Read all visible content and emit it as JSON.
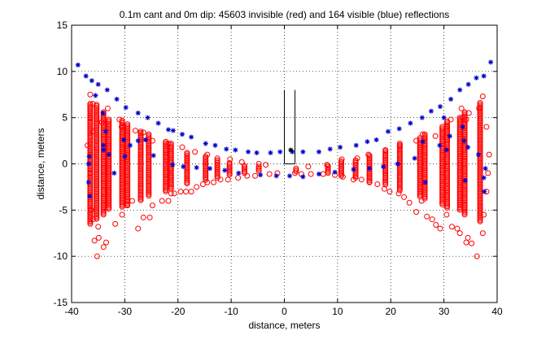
{
  "chart_data": {
    "type": "scatter",
    "title": "0.1m cant and 0m dip: 45603 invisible (red) and 164 visible (blue) reflections",
    "xlabel": "distance, meters",
    "ylabel": "distance, meters",
    "xlim": [
      -40,
      40
    ],
    "ylim": [
      -15,
      15
    ],
    "x_ticks": [
      -40,
      -30,
      -20,
      -10,
      0,
      10,
      20,
      30,
      40
    ],
    "y_ticks": [
      -15,
      -10,
      -5,
      0,
      5,
      10,
      15
    ],
    "x_tick_labels": [
      "-40",
      "-30",
      "-20",
      "-10",
      "0",
      "10",
      "20",
      "30",
      "40"
    ],
    "y_tick_labels": [
      "-15",
      "-10",
      "-5",
      "0",
      "5",
      "10",
      "15"
    ],
    "grid": true,
    "grid_style": "dotted",
    "series": [
      {
        "color": "#ff0000",
        "marker": "circle-open",
        "points": [
          [
            -36.5,
            1
          ],
          [
            -36.5,
            -1
          ],
          [
            -36.3,
            -5
          ],
          [
            -36,
            -6
          ],
          [
            -35.7,
            -8.3
          ],
          [
            -35.2,
            -10
          ],
          [
            -35,
            -6.8
          ],
          [
            -34.9,
            -8
          ],
          [
            -34,
            -9
          ],
          [
            -33.5,
            -8.5
          ],
          [
            -31.8,
            -6.5
          ],
          [
            -30.5,
            -5.5
          ],
          [
            -29.5,
            -4.5
          ],
          [
            -28.6,
            -4
          ],
          [
            -27.5,
            -7
          ],
          [
            -26.5,
            -5.8
          ],
          [
            -25.3,
            -5.8
          ],
          [
            -24.8,
            -4.5
          ],
          [
            -23,
            -4
          ],
          [
            -21.8,
            -4
          ],
          [
            -21.3,
            -3.2
          ],
          [
            -20.7,
            -3.2
          ],
          [
            -19.5,
            -3
          ],
          [
            -18.5,
            -3
          ],
          [
            -17.5,
            -3
          ],
          [
            -16.5,
            -2.5
          ],
          [
            -15.3,
            -2.2
          ],
          [
            -14.5,
            -2
          ],
          [
            -13.3,
            -2
          ],
          [
            -12,
            -1.7
          ],
          [
            -10.6,
            -1.7
          ],
          [
            -8.7,
            -1.5
          ],
          [
            -7,
            -1.3
          ],
          [
            -5.5,
            -1.3
          ],
          [
            -2.8,
            -1.1
          ],
          [
            -1.3,
            -1
          ],
          [
            2,
            -1
          ],
          [
            3.2,
            -1.1
          ],
          [
            5,
            -1.1
          ],
          [
            7.3,
            -1.1
          ],
          [
            9.5,
            -1.2
          ],
          [
            11,
            -1.4
          ],
          [
            13,
            -1.7
          ],
          [
            14.5,
            -1.7
          ],
          [
            16,
            -2
          ],
          [
            17.5,
            -2.2
          ],
          [
            18.8,
            -2.7
          ],
          [
            19.8,
            -3
          ],
          [
            21.5,
            -3.2
          ],
          [
            22.5,
            -3.6
          ],
          [
            23.5,
            -4.2
          ],
          [
            24.8,
            -5.2
          ],
          [
            25.8,
            -4
          ],
          [
            26.8,
            -5.7
          ],
          [
            27.8,
            -6
          ],
          [
            28.5,
            -6.6
          ],
          [
            29.3,
            -7
          ],
          [
            30.5,
            -5.5
          ],
          [
            31.5,
            -6.8
          ],
          [
            32.5,
            -7
          ],
          [
            33,
            -7.5
          ],
          [
            34.2,
            -8.5
          ],
          [
            34.5,
            -8
          ],
          [
            35.2,
            -8.6
          ],
          [
            36.2,
            -10
          ],
          [
            37.3,
            -7.5
          ],
          [
            37.5,
            -5.5
          ],
          [
            38,
            -3
          ],
          [
            38.3,
            -1
          ],
          [
            38.5,
            1
          ],
          [
            -36.5,
            5
          ],
          [
            -36,
            3.5
          ],
          [
            -36,
            6.5
          ],
          [
            -36.5,
            7.5
          ],
          [
            -31,
            4.8
          ],
          [
            -30.6,
            4
          ],
          [
            -28,
            3.6
          ],
          [
            -26.5,
            3.4
          ],
          [
            -24.8,
            2.5
          ],
          [
            -21.8,
            2.2
          ],
          [
            -19.2,
            1.8
          ],
          [
            -16.8,
            1.3
          ],
          [
            -14.5,
            1
          ],
          [
            -12.6,
            0.6
          ],
          [
            -10.2,
            0.5
          ],
          [
            -8,
            0.2
          ],
          [
            -4.8,
            0
          ],
          [
            -3.5,
            -0.1
          ],
          [
            4.5,
            -0.3
          ],
          [
            8,
            -0.1
          ],
          [
            10.8,
            0.5
          ],
          [
            13.7,
            0.6
          ],
          [
            15.8,
            1
          ],
          [
            19,
            1.5
          ],
          [
            21.7,
            2
          ],
          [
            24.8,
            2.5
          ],
          [
            26,
            3.2
          ],
          [
            28.4,
            3
          ],
          [
            30.5,
            4
          ],
          [
            31.3,
            4.8
          ],
          [
            33.5,
            5
          ],
          [
            34.7,
            5.5
          ],
          [
            36.6,
            6
          ],
          [
            37.3,
            7.3
          ],
          [
            38,
            4
          ],
          [
            -34.3,
            4.5
          ],
          [
            34.2,
            4.8
          ],
          [
            -33.2,
            6
          ],
          [
            33.3,
            6
          ],
          [
            -37,
            2
          ]
        ]
      },
      {
        "color": "#0000cc",
        "marker": "asterisk",
        "points": [
          [
            -38.8,
            10.7
          ],
          [
            -37.3,
            9.5
          ],
          [
            -36.2,
            9
          ],
          [
            -35.5,
            7.4
          ],
          [
            -35,
            8.6
          ],
          [
            -33.3,
            8
          ],
          [
            -31.5,
            7
          ],
          [
            -29.8,
            6.1
          ],
          [
            -27.5,
            5.5
          ],
          [
            -25.7,
            5
          ],
          [
            -23.7,
            4.4
          ],
          [
            -21.8,
            3.7
          ],
          [
            -20.9,
            3.6
          ],
          [
            -19.2,
            3.2
          ],
          [
            -17.5,
            2.9
          ],
          [
            -14.8,
            2.2
          ],
          [
            -13,
            2
          ],
          [
            -10.9,
            1.6
          ],
          [
            -9.2,
            1.5
          ],
          [
            -6.8,
            1.3
          ],
          [
            -5.2,
            1.2
          ],
          [
            -2.6,
            1.2
          ],
          [
            -0.8,
            1.3
          ],
          [
            1.5,
            1.3
          ],
          [
            3.5,
            1.3
          ],
          [
            6.5,
            1.3
          ],
          [
            8.6,
            1.6
          ],
          [
            10.5,
            1.8
          ],
          [
            13.5,
            2
          ],
          [
            15.6,
            2.4
          ],
          [
            17.3,
            2.6
          ],
          [
            19.5,
            3.5
          ],
          [
            21.6,
            3.8
          ],
          [
            23.7,
            4.4
          ],
          [
            25.9,
            5
          ],
          [
            27.6,
            5.7
          ],
          [
            29.3,
            6.2
          ],
          [
            31.3,
            7
          ],
          [
            33,
            8
          ],
          [
            34.6,
            8.6
          ],
          [
            36.1,
            9.3
          ],
          [
            37.5,
            9.5
          ],
          [
            38.8,
            11
          ],
          [
            -36.8,
            -2
          ],
          [
            -36.6,
            -3.5
          ],
          [
            -34.1,
            5.5
          ],
          [
            -34,
            2
          ],
          [
            -33,
            1
          ],
          [
            -30.2,
            2.6
          ],
          [
            -29,
            2
          ],
          [
            -26.1,
            2.6
          ],
          [
            -24.6,
            0.9
          ],
          [
            -21,
            -0.1
          ],
          [
            -19,
            -0.3
          ],
          [
            -16.5,
            -0.4
          ],
          [
            -14,
            -0.5
          ],
          [
            -11.2,
            -0.7
          ],
          [
            -8.6,
            -1
          ],
          [
            -4.5,
            -1.2
          ],
          [
            -1.5,
            -1.3
          ],
          [
            1,
            -1.3
          ],
          [
            3.5,
            -1.4
          ],
          [
            6.5,
            -1.1
          ],
          [
            9.5,
            -0.9
          ],
          [
            13,
            -0.6
          ],
          [
            16,
            -0.5
          ],
          [
            18.6,
            -0.3
          ],
          [
            21.3,
            0
          ],
          [
            24.5,
            0.6
          ],
          [
            26,
            2.4
          ],
          [
            29.2,
            2
          ],
          [
            30.5,
            1.5
          ],
          [
            31.1,
            3
          ],
          [
            33.5,
            4
          ],
          [
            33.8,
            2.5
          ],
          [
            34.5,
            1.8
          ],
          [
            36.5,
            1
          ],
          [
            37.8,
            -0.5
          ],
          [
            37.6,
            -3
          ],
          [
            -34,
            1.5
          ],
          [
            -36.8,
            0
          ],
          [
            -36.7,
            0.8
          ],
          [
            -30,
            0.8
          ],
          [
            26.5,
            -2
          ],
          [
            34,
            -1.8
          ],
          [
            37.5,
            -1.5
          ],
          [
            -32,
            -1
          ],
          [
            -33.6,
            3.5
          ],
          [
            30,
            5
          ],
          [
            -27.5,
            2.5
          ]
        ]
      },
      {
        "color": "#000000",
        "marker": "asterisk",
        "points": [
          [
            1.2,
            1.5
          ]
        ]
      }
    ],
    "clusters": [
      {
        "x": -36.5,
        "ymin": -6.5,
        "ymax": 6.5
      },
      {
        "x": -35.3,
        "ymin": -6.0,
        "ymax": 6.4
      },
      {
        "x": -34.0,
        "ymin": -5.5,
        "ymax": 5.6
      },
      {
        "x": -33.0,
        "ymin": -5.0,
        "ymax": 4.8
      },
      {
        "x": -30.5,
        "ymin": -4.8,
        "ymax": 4.7
      },
      {
        "x": -29.5,
        "ymin": -4.5,
        "ymax": 4.3
      },
      {
        "x": -27.0,
        "ymin": -4.0,
        "ymax": 3.5
      },
      {
        "x": -25.5,
        "ymin": -3.6,
        "ymax": 3.2
      },
      {
        "x": -22.3,
        "ymin": -3.0,
        "ymax": 2.4
      },
      {
        "x": -21.3,
        "ymin": -2.8,
        "ymax": 2.2
      },
      {
        "x": -18.3,
        "ymin": -2.2,
        "ymax": 1.2
      },
      {
        "x": -14.8,
        "ymin": -1.8,
        "ymax": 0.8
      },
      {
        "x": -12.6,
        "ymin": -1.6,
        "ymax": 0.4
      },
      {
        "x": -10.3,
        "ymin": -1.3,
        "ymax": 0.1
      },
      {
        "x": -7.5,
        "ymin": -1.0,
        "ymax": -0.2
      },
      {
        "x": -4.8,
        "ymin": -0.9,
        "ymax": -0.3
      },
      {
        "x": 2.2,
        "ymin": -0.9,
        "ymax": -0.5
      },
      {
        "x": 8.2,
        "ymin": -1.0,
        "ymax": -0.2
      },
      {
        "x": 10.7,
        "ymin": -1.3,
        "ymax": 0.3
      },
      {
        "x": 13.4,
        "ymin": -1.6,
        "ymax": 0.4
      },
      {
        "x": 16.0,
        "ymin": -2.0,
        "ymax": 0.9
      },
      {
        "x": 19.0,
        "ymin": -2.3,
        "ymax": 1.4
      },
      {
        "x": 21.7,
        "ymin": -3.0,
        "ymax": 2.2
      },
      {
        "x": 25.5,
        "ymin": -3.6,
        "ymax": 2.8
      },
      {
        "x": 26.4,
        "ymin": -3.8,
        "ymax": 3.2
      },
      {
        "x": 29.7,
        "ymin": -4.4,
        "ymax": 4.0
      },
      {
        "x": 30.6,
        "ymin": -4.8,
        "ymax": 4.6
      },
      {
        "x": 33.0,
        "ymin": -5.0,
        "ymax": 5.0
      },
      {
        "x": 33.9,
        "ymin": -5.6,
        "ymax": 5.6
      },
      {
        "x": 36.8,
        "ymin": -6.3,
        "ymax": 6.6
      }
    ],
    "outline": {
      "lines": [
        {
          "x": [
            0,
            0
          ],
          "y": [
            0,
            8
          ]
        },
        {
          "x": [
            2,
            2
          ],
          "y": [
            1.4,
            8
          ]
        },
        {
          "x": [
            0,
            2
          ],
          "y": [
            0,
            0
          ]
        },
        {
          "x": [
            2,
            2
          ],
          "y": [
            0,
            1.4
          ]
        }
      ]
    }
  }
}
